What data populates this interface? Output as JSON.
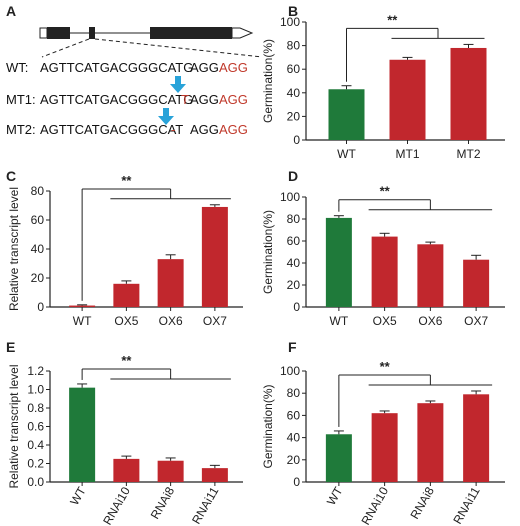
{
  "panel_a": {
    "letter": "A",
    "rows": [
      {
        "label": "WT:",
        "seq": "AGTTCATGACGGGCATG",
        "mut": "",
        "gap": "AGG",
        "pam": "AGG"
      },
      {
        "label": "MT1:",
        "seq": "AGTTCATGACGGGCATG",
        "mut": "T",
        "gap": "AGG",
        "pam": "AGG"
      },
      {
        "label": "MT2:",
        "seq": "AGTTCATGACGGGCAT",
        "mut": "-",
        "gap": "AGG",
        "pam": "AGG"
      }
    ],
    "colors": {
      "pam": "#c0392b",
      "mutation": "#c0392b",
      "arrow": "#29a3d9"
    }
  },
  "colors": {
    "green": "#1f7a3a",
    "red": "#c1272d"
  },
  "chart_data": [
    {
      "panel": "B",
      "type": "bar",
      "categories": [
        "WT",
        "MT1",
        "MT2"
      ],
      "values": [
        43,
        68,
        78
      ],
      "errors": [
        3,
        2,
        3
      ],
      "ylabel": "Germination(%)",
      "ylim": [
        0,
        100
      ],
      "yticks": [
        0,
        20,
        40,
        60,
        80,
        100
      ],
      "significance": "**",
      "bar_colors": [
        "green",
        "red",
        "red"
      ],
      "rotate_labels": false
    },
    {
      "panel": "C",
      "type": "bar",
      "categories": [
        "WT",
        "OX5",
        "OX6",
        "OX7"
      ],
      "values": [
        1,
        16,
        33,
        69
      ],
      "errors": [
        0.5,
        2,
        3,
        1.5
      ],
      "ylabel": "Relative transcript level",
      "ylim": [
        0,
        80
      ],
      "yticks": [
        0,
        20,
        40,
        60,
        80
      ],
      "significance": "**",
      "bar_colors": [
        "red",
        "red",
        "red",
        "red"
      ],
      "rotate_labels": false
    },
    {
      "panel": "D",
      "type": "bar",
      "categories": [
        "WT",
        "OX5",
        "OX6",
        "OX7"
      ],
      "values": [
        81,
        64,
        57,
        43
      ],
      "errors": [
        2,
        3,
        2,
        4
      ],
      "ylabel": "Germination(%)",
      "ylim": [
        0,
        100
      ],
      "yticks": [
        0,
        20,
        40,
        60,
        80,
        100
      ],
      "significance": "**",
      "bar_colors": [
        "green",
        "red",
        "red",
        "red"
      ],
      "rotate_labels": false
    },
    {
      "panel": "E",
      "type": "bar",
      "categories": [
        "WT",
        "RNAi10",
        "RNAi8",
        "RNAi11"
      ],
      "values": [
        1.02,
        0.25,
        0.23,
        0.15
      ],
      "errors": [
        0.04,
        0.03,
        0.03,
        0.03
      ],
      "ylabel": "Relative transcript level",
      "ylim": [
        0,
        1.2
      ],
      "yticks": [
        "0.0",
        "0.2",
        "0.4",
        "0.6",
        "0.8",
        "1.0",
        "1.2"
      ],
      "significance": "**",
      "bar_colors": [
        "green",
        "red",
        "red",
        "red"
      ],
      "rotate_labels": true
    },
    {
      "panel": "F",
      "type": "bar",
      "categories": [
        "WT",
        "RNAi10",
        "RNAi8",
        "RNAi11"
      ],
      "values": [
        43,
        62,
        71,
        79
      ],
      "errors": [
        3,
        2,
        2,
        3
      ],
      "ylabel": "Germination(%)",
      "ylim": [
        0,
        100
      ],
      "yticks": [
        0,
        20,
        40,
        60,
        80,
        100
      ],
      "significance": "**",
      "bar_colors": [
        "green",
        "red",
        "red",
        "red"
      ],
      "rotate_labels": true
    }
  ]
}
